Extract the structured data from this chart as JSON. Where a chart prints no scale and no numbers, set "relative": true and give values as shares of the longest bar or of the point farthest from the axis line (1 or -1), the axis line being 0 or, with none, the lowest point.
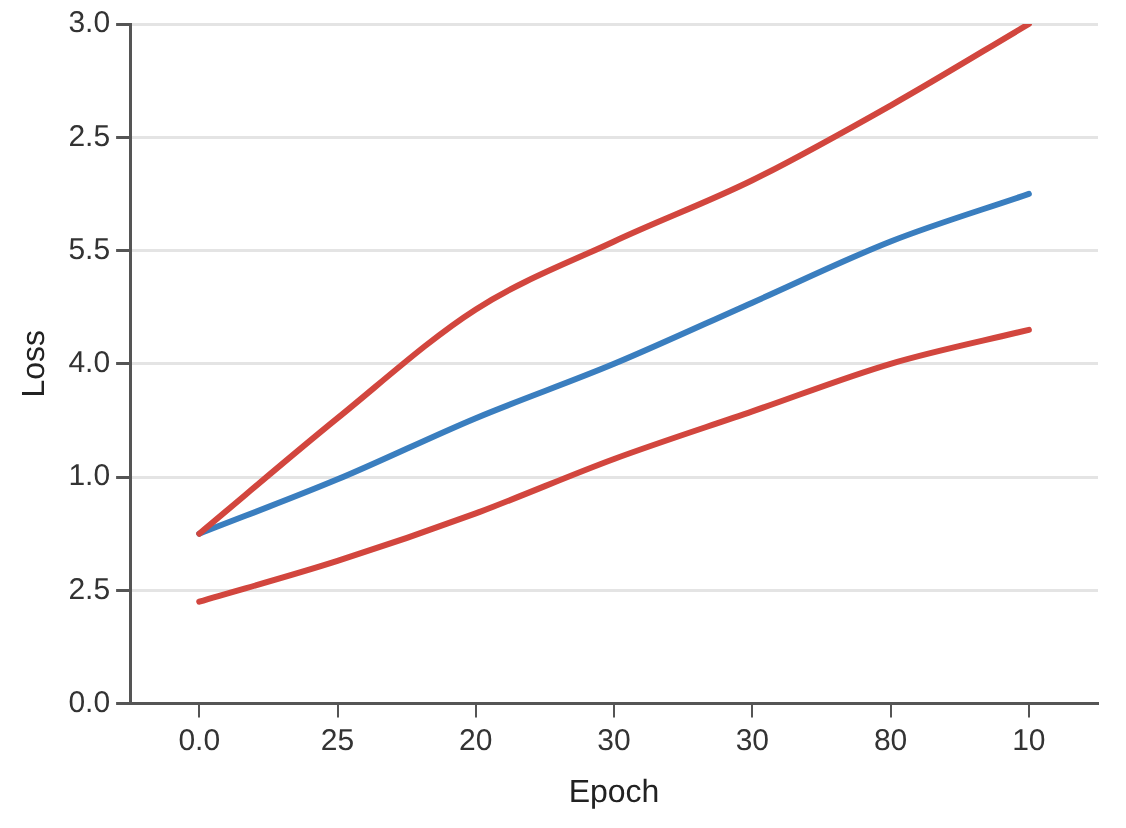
{
  "chart_data": {
    "type": "line",
    "xlabel": "Epoch",
    "ylabel": "Loss",
    "relative": true,
    "categories": [
      "0.0",
      "25",
      "20",
      "30",
      "30",
      "80",
      "10"
    ],
    "annotations": [
      "0.0",
      "2.5",
      "1.0",
      "4.0",
      "5.5",
      "2.5",
      "3.0"
    ],
    "grid": "y",
    "legend": false,
    "marker": "none",
    "line_style": "solid",
    "series": [
      {
        "color": "#d2463e",
        "values": [
          0.25,
          0.42,
          0.58,
          0.68,
          0.77,
          0.88,
          1
        ]
      },
      {
        "color": "#3a7ebf",
        "values": [
          0.25,
          0.33,
          0.42,
          0.5,
          0.59,
          0.68,
          0.75
        ]
      },
      {
        "color": "#d2463e",
        "values": [
          0.15,
          0.21,
          0.28,
          0.36,
          0.43,
          0.5,
          0.55
        ]
      }
    ]
  }
}
